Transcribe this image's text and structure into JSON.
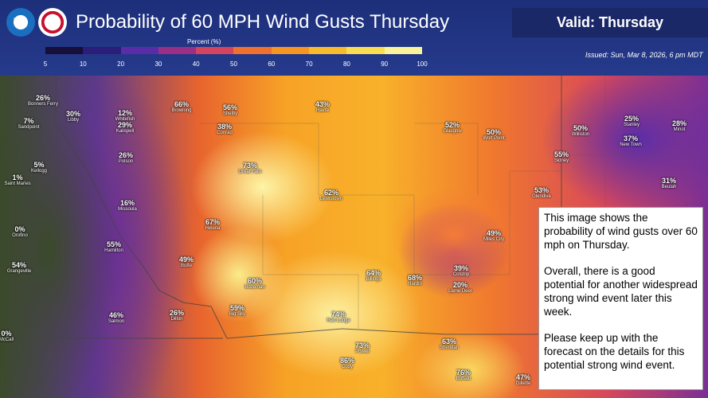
{
  "header": {
    "logo_text": "NOAA",
    "title": "Probability of 60 MPH Wind Gusts Thursday",
    "valid": "Valid: Thursday",
    "issued": "Issued: Sun, Mar 8, 2026, 6 pm MDT"
  },
  "legend": {
    "title": "Percent (%)",
    "ticks": [
      5,
      10,
      20,
      30,
      40,
      50,
      60,
      70,
      80,
      90,
      100
    ],
    "colors": [
      "#160f3a",
      "#2b1d7a",
      "#5a2da8",
      "#9a2f86",
      "#d4445e",
      "#f0702e",
      "#f6951f",
      "#f8bb2c",
      "#f9de52",
      "#fbf39a"
    ]
  },
  "places": [
    {
      "pct": "26%",
      "name": "Bonners Ferry"
    },
    {
      "pct": "7%",
      "name": "Sandpoint"
    },
    {
      "pct": "30%",
      "name": "Libby"
    },
    {
      "pct": "12%",
      "name": "Whitefish"
    },
    {
      "pct": "29%",
      "name": "Kalispell"
    },
    {
      "pct": "26%",
      "name": "Polson"
    },
    {
      "pct": "5%",
      "name": "Kellogg"
    },
    {
      "pct": "1%",
      "name": "Saint Maries"
    },
    {
      "pct": "16%",
      "name": "Missoula"
    },
    {
      "pct": "0%",
      "name": "Orofino"
    },
    {
      "pct": "55%",
      "name": "Hamilton"
    },
    {
      "pct": "54%",
      "name": "Grangeville"
    },
    {
      "pct": "0%",
      "name": "McCall"
    },
    {
      "pct": "46%",
      "name": "Salmon"
    },
    {
      "pct": "26%",
      "name": "Dillon"
    },
    {
      "pct": "49%",
      "name": "Butte"
    },
    {
      "pct": "67%",
      "name": "Helena"
    },
    {
      "pct": "73%",
      "name": "Great Falls"
    },
    {
      "pct": "66%",
      "name": "Browning"
    },
    {
      "pct": "56%",
      "name": "Shelby"
    },
    {
      "pct": "38%",
      "name": "Conrad"
    },
    {
      "pct": "43%",
      "name": "Havre"
    },
    {
      "pct": "62%",
      "name": "Lewistown"
    },
    {
      "pct": "60%",
      "name": "Bozeman"
    },
    {
      "pct": "59%",
      "name": "Big Sky"
    },
    {
      "pct": "64%",
      "name": "Billings"
    },
    {
      "pct": "74%",
      "name": "Red Lodge"
    },
    {
      "pct": "73%",
      "name": "Powell"
    },
    {
      "pct": "86%",
      "name": "Cody"
    },
    {
      "pct": "68%",
      "name": "Hardin"
    },
    {
      "pct": "39%",
      "name": "Colstrip"
    },
    {
      "pct": "20%",
      "name": "Lame Deer"
    },
    {
      "pct": "49%",
      "name": "Miles City"
    },
    {
      "pct": "63%",
      "name": "Sheridan"
    },
    {
      "pct": "76%",
      "name": "Buffalo"
    },
    {
      "pct": "47%",
      "name": "Gillette"
    },
    {
      "pct": "52%",
      "name": "Glasgow"
    },
    {
      "pct": "50%",
      "name": "Wolf Point"
    },
    {
      "pct": "50%",
      "name": "Williston"
    },
    {
      "pct": "55%",
      "name": "Sidney"
    },
    {
      "pct": "53%",
      "name": "Glendive"
    },
    {
      "pct": "25%",
      "name": "Stanley"
    },
    {
      "pct": "37%",
      "name": "New Town"
    },
    {
      "pct": "28%",
      "name": "Minot"
    },
    {
      "pct": "31%",
      "name": "Beulah"
    }
  ],
  "info": [
    "This image shows the probability of wind gusts over 60 mph on Thursday.",
    "Overall, there is a good potential for another widespread strong wind event later this week.",
    "Please keep up with the forecast on the details for this potential strong wind event."
  ]
}
